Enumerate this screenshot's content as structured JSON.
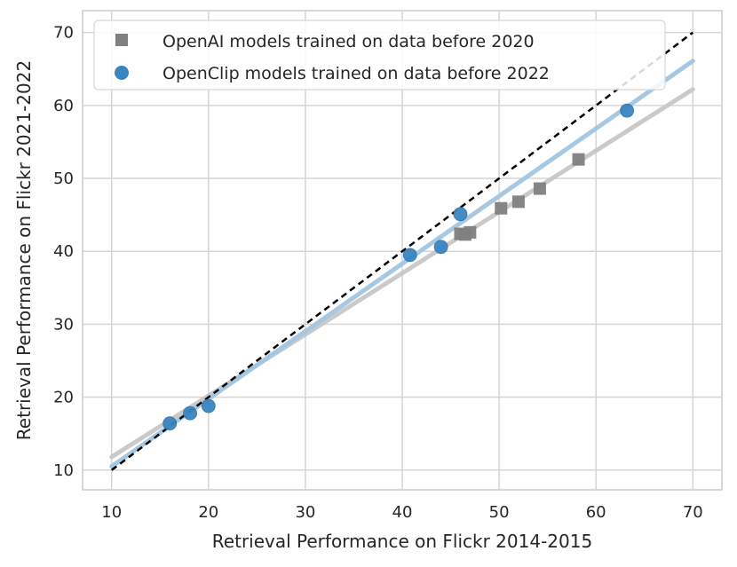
{
  "chart_data": {
    "type": "scatter",
    "title": "",
    "xlabel": "Retrieval Performance on Flickr 2014-2015",
    "ylabel": "Retrieval Performance on Flickr 2021-2022",
    "xlim": [
      7,
      73
    ],
    "ylim": [
      7.3,
      73
    ],
    "xticks": [
      10,
      20,
      30,
      40,
      50,
      60,
      70
    ],
    "yticks": [
      10,
      20,
      30,
      40,
      50,
      60,
      70
    ],
    "grid": true,
    "legend_position": "top-left",
    "series": [
      {
        "name": "OpenAI models trained on data before 2020",
        "marker": "square",
        "color": "#808080",
        "points": [
          {
            "x": 46.0,
            "y": 42.4
          },
          {
            "x": 46.5,
            "y": 42.3
          },
          {
            "x": 47.0,
            "y": 42.6
          },
          {
            "x": 50.2,
            "y": 45.9
          },
          {
            "x": 52.0,
            "y": 46.8
          },
          {
            "x": 54.2,
            "y": 48.6
          },
          {
            "x": 58.2,
            "y": 52.6
          }
        ],
        "fit": {
          "x0": 10,
          "y0": 11.8,
          "x1": 70,
          "y1": 62.2,
          "color": "#c8c8c8"
        }
      },
      {
        "name": "OpenClip models trained on data before 2022",
        "marker": "circle",
        "color": "#3a84c0",
        "points": [
          {
            "x": 16.0,
            "y": 16.4
          },
          {
            "x": 18.1,
            "y": 17.8
          },
          {
            "x": 20.0,
            "y": 18.8
          },
          {
            "x": 40.8,
            "y": 39.5
          },
          {
            "x": 44.0,
            "y": 40.6
          },
          {
            "x": 46.0,
            "y": 45.1
          },
          {
            "x": 63.2,
            "y": 59.3
          }
        ],
        "fit": {
          "x0": 10,
          "y0": 10.5,
          "x1": 70,
          "y1": 66.1,
          "color": "#a3c6e2"
        }
      }
    ],
    "reference_line": {
      "x0": 10,
      "y0": 10,
      "x1": 70,
      "y1": 70,
      "style": "dashed",
      "color": "#000000"
    }
  }
}
